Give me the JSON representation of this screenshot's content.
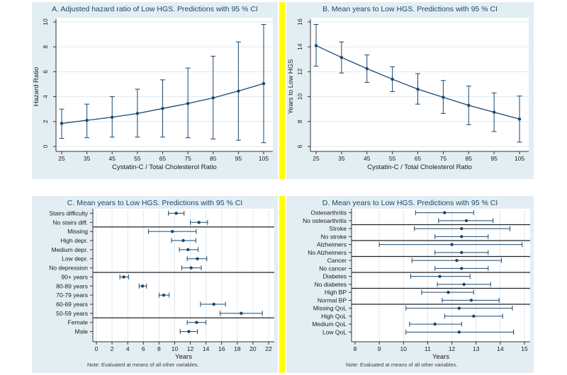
{
  "figure": {
    "background": "#FFFFFF",
    "panel_background": "#E3EEF3",
    "plot_background": "#FFFFFF",
    "grid_color": "#DCE8F0",
    "axis_color": "#333333",
    "text_color": "#1A1A1A",
    "title_color": "#1A476F",
    "accent_color": "#1A476F",
    "separator_color": "#222222",
    "note_color": "#3C3C3C",
    "divider_color": "#FFFF00"
  },
  "chart_data": [
    {
      "id": "A",
      "type": "line",
      "title": "A. Adjusted hazard ratio of Low HGS. Predictions with 95 % CI",
      "xlabel": "Cystatin-C / Total Cholesterol Ratio",
      "ylabel": "Hazard Ratio",
      "x": [
        25,
        35,
        45,
        55,
        65,
        75,
        85,
        95,
        105
      ],
      "y": [
        1.85,
        2.1,
        2.35,
        2.65,
        3.05,
        3.45,
        3.9,
        4.45,
        5.05
      ],
      "ci_low": [
        0.65,
        0.7,
        0.75,
        0.75,
        0.75,
        0.7,
        0.6,
        0.5,
        0.3
      ],
      "ci_high": [
        3.0,
        3.4,
        4.0,
        4.6,
        5.35,
        6.3,
        7.25,
        8.4,
        9.8
      ],
      "ylim": [
        0,
        10
      ],
      "yticks": [
        0,
        2,
        4,
        6,
        8,
        10
      ],
      "grid": "horizontal",
      "legend": "none"
    },
    {
      "id": "B",
      "type": "line",
      "title": "B. Mean years to Low HGS. Predictions with 95 % CI",
      "xlabel": "Cystatin-C / Total Cholesterol Ratio",
      "ylabel": "Years to Low HGS",
      "x": [
        25,
        35,
        45,
        55,
        65,
        75,
        85,
        95,
        105
      ],
      "y": [
        14.1,
        13.15,
        12.25,
        11.4,
        10.6,
        9.95,
        9.3,
        8.75,
        8.2
      ],
      "ci_low": [
        12.45,
        11.9,
        11.15,
        10.4,
        9.4,
        8.65,
        7.75,
        7.2,
        6.35
      ],
      "ci_high": [
        15.8,
        14.4,
        13.35,
        12.4,
        11.85,
        11.3,
        10.85,
        10.3,
        10.05
      ],
      "ylim": [
        6,
        16
      ],
      "yticks": [
        6,
        8,
        10,
        12,
        14,
        16
      ],
      "grid": "horizontal",
      "legend": "none"
    },
    {
      "id": "C",
      "type": "dot",
      "title": "C. Mean years to Low HGS. Predictions with 95 % CI",
      "xlabel": "Years",
      "note": "Note: Evaluated at means of all other variables.",
      "categories": [
        "Stairs difficulty",
        "No stairs diff.",
        "Missing",
        "High depr.",
        "Medium depr.",
        "Low depr.",
        "No depression",
        "90+ years",
        "80-89 years",
        "70-79 years",
        "60-69 years",
        "50-59 years",
        "Female",
        "Male"
      ],
      "values": [
        10.2,
        13.1,
        9.7,
        11.1,
        11.7,
        12.9,
        12.1,
        3.5,
        5.9,
        8.6,
        15.0,
        18.5,
        12.8,
        11.8
      ],
      "ci_low": [
        9.2,
        12.0,
        6.65,
        9.6,
        10.6,
        11.6,
        10.9,
        3.0,
        5.45,
        8.0,
        13.3,
        15.8,
        11.6,
        10.7
      ],
      "ci_high": [
        11.2,
        14.2,
        12.75,
        12.7,
        13.0,
        14.1,
        13.4,
        4.1,
        6.4,
        9.3,
        16.5,
        21.2,
        14.0,
        12.9
      ],
      "xticks": [
        0,
        2,
        4,
        6,
        8,
        10,
        12,
        14,
        16,
        18,
        20,
        22
      ],
      "separators_after_index": [
        1,
        6,
        11
      ],
      "grid": "vertical",
      "legend": "none"
    },
    {
      "id": "D",
      "type": "dot",
      "title": "D. Mean years to Low HGS. Predictions with 95 % CI",
      "xlabel": "Years",
      "note": "Note: Evaluated at means of all other variables.",
      "categories": [
        "Osteoarthritis",
        "No osteoarthritis",
        "Stroke",
        "No stroke",
        "Alzheimers",
        "No Alzheimers",
        "Cancer",
        "No cancer",
        "Diabetes",
        "No diabetes",
        "High BP",
        "Normal BP",
        "Missing QoL",
        "High QoL",
        "Medium QoL",
        "Low QoL"
      ],
      "values": [
        11.7,
        12.6,
        12.4,
        12.4,
        12.0,
        12.4,
        12.2,
        12.4,
        11.5,
        12.5,
        11.85,
        12.8,
        12.3,
        12.9,
        11.3,
        12.3
      ],
      "ci_low": [
        10.5,
        11.45,
        10.45,
        11.3,
        9.0,
        11.3,
        10.35,
        11.3,
        10.3,
        11.4,
        10.75,
        11.6,
        10.1,
        11.7,
        10.25,
        10.1
      ],
      "ci_high": [
        12.9,
        13.7,
        14.4,
        13.5,
        14.9,
        13.5,
        14.05,
        13.5,
        12.75,
        13.6,
        12.9,
        13.95,
        14.5,
        14.1,
        12.4,
        14.55
      ],
      "xticks": [
        8,
        9,
        10,
        11,
        12,
        13,
        14,
        15
      ],
      "separators_after_index": [
        1,
        3,
        5,
        7,
        9,
        11
      ],
      "grid": "vertical",
      "legend": "none"
    }
  ]
}
